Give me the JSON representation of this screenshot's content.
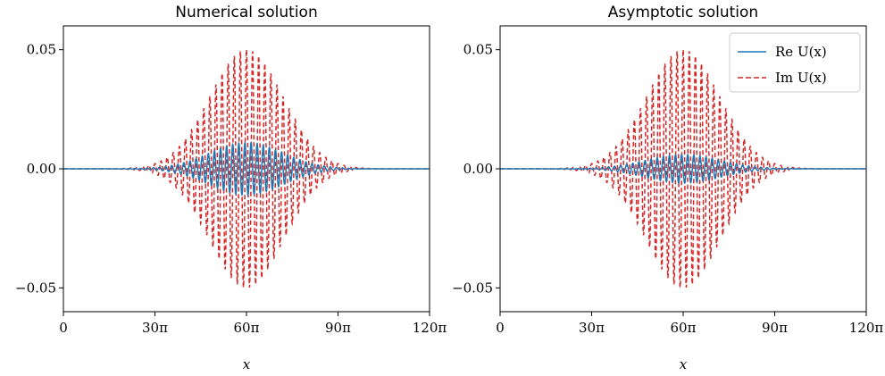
{
  "chart_data": [
    {
      "type": "line",
      "title": "Numerical solution",
      "xlabel": "x",
      "ylabel": "",
      "xlim": [
        0,
        120
      ],
      "ylim": [
        -0.06,
        0.06
      ],
      "x_unit": "π",
      "xticks": [
        {
          "v": 0,
          "label": "0"
        },
        {
          "v": 30,
          "label": "30π"
        },
        {
          "v": 60,
          "label": "60π"
        },
        {
          "v": 90,
          "label": "90π"
        },
        {
          "v": 120,
          "label": "120π"
        }
      ],
      "yticks": [
        {
          "v": 0.05,
          "label": "0.05"
        },
        {
          "v": 0,
          "label": "0.00"
        },
        {
          "v": -0.05,
          "label": "−0.05"
        }
      ],
      "grid": false,
      "series": [
        {
          "name": "Re U(x)",
          "color": "#1f77b4",
          "dash": "solid",
          "envelope_peak": 0.011,
          "envelope_center": 60,
          "envelope_width": 17,
          "oscillation_period": 2.0
        },
        {
          "name": "Im U(x)",
          "color": "#d62728",
          "dash": "dashed",
          "envelope_peak": 0.05,
          "envelope_center": 60,
          "envelope_width": 17,
          "oscillation_period": 2.0
        }
      ]
    },
    {
      "type": "line",
      "title": "Asymptotic solution",
      "xlabel": "x",
      "ylabel": "",
      "xlim": [
        0,
        120
      ],
      "ylim": [
        -0.06,
        0.06
      ],
      "x_unit": "π",
      "xticks": [
        {
          "v": 0,
          "label": "0"
        },
        {
          "v": 30,
          "label": "30π"
        },
        {
          "v": 60,
          "label": "60π"
        },
        {
          "v": 90,
          "label": "90π"
        },
        {
          "v": 120,
          "label": "120π"
        }
      ],
      "yticks": [
        {
          "v": 0.05,
          "label": "0.05"
        },
        {
          "v": 0,
          "label": "0.00"
        },
        {
          "v": -0.05,
          "label": "−0.05"
        }
      ],
      "grid": false,
      "legend": {
        "position": "top-right",
        "entries": [
          {
            "label": "Re U(x)",
            "color": "#1f77b4",
            "dash": "solid"
          },
          {
            "label": "Im U(x)",
            "color": "#d62728",
            "dash": "dashed"
          }
        ]
      },
      "series": [
        {
          "name": "Re U(x)",
          "color": "#1f77b4",
          "dash": "solid",
          "envelope_peak": 0.006,
          "envelope_center": 60,
          "envelope_width": 17,
          "oscillation_period": 2.0
        },
        {
          "name": "Im U(x)",
          "color": "#d62728",
          "dash": "dashed",
          "envelope_peak": 0.05,
          "envelope_center": 60,
          "envelope_width": 17,
          "oscillation_period": 2.0
        }
      ]
    }
  ]
}
